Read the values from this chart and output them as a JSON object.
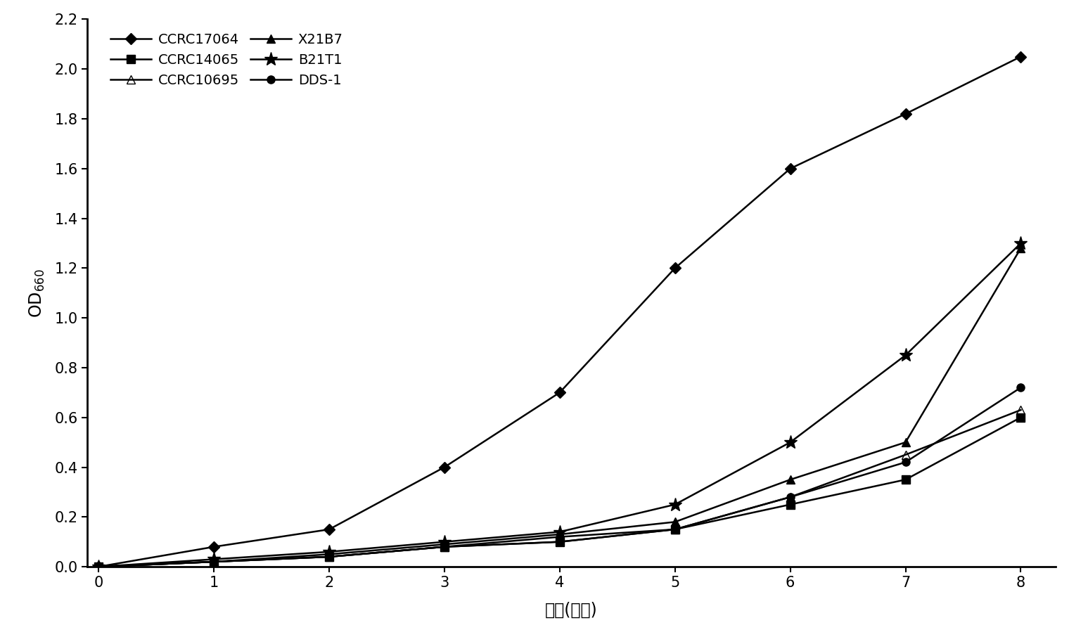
{
  "x": [
    0,
    1,
    2,
    3,
    4,
    5,
    6,
    7,
    8
  ],
  "series": {
    "CCRC17064": [
      0.0,
      0.08,
      0.15,
      0.4,
      0.7,
      1.2,
      1.6,
      1.82,
      2.05
    ],
    "CCRC14065": [
      0.0,
      0.02,
      0.04,
      0.08,
      0.1,
      0.15,
      0.25,
      0.35,
      0.6
    ],
    "CCRC10695": [
      0.0,
      0.02,
      0.04,
      0.08,
      0.12,
      0.15,
      0.28,
      0.45,
      0.63
    ],
    "X21B7": [
      0.0,
      0.02,
      0.05,
      0.09,
      0.13,
      0.18,
      0.35,
      0.5,
      1.28
    ],
    "B21T1": [
      0.0,
      0.03,
      0.06,
      0.1,
      0.14,
      0.25,
      0.5,
      0.85,
      1.3
    ],
    "DDS-1": [
      0.0,
      0.02,
      0.04,
      0.08,
      0.1,
      0.15,
      0.28,
      0.42,
      0.72
    ]
  },
  "series_order": [
    "CCRC17064",
    "CCRC14065",
    "CCRC10695",
    "X21B7",
    "B21T1",
    "DDS-1"
  ],
  "legend_order": [
    "CCRC17064",
    "CCRC14065",
    "CCRC10695",
    "X21B7",
    "B21T1",
    "DDS-1"
  ],
  "marker_styles": {
    "CCRC17064": {
      "marker": "D",
      "mfc": "black",
      "mec": "black",
      "ms": 8
    },
    "CCRC14065": {
      "marker": "s",
      "mfc": "black",
      "mec": "black",
      "ms": 8
    },
    "CCRC10695": {
      "marker": "^",
      "mfc": "none",
      "mec": "black",
      "ms": 9
    },
    "X21B7": {
      "marker": "^",
      "mfc": "black",
      "mec": "black",
      "ms": 9
    },
    "B21T1": {
      "marker": "*",
      "mfc": "black",
      "mec": "black",
      "ms": 14
    },
    "DDS-1": {
      "marker": "o",
      "mfc": "black",
      "mec": "black",
      "ms": 8
    }
  },
  "ylabel": "OD$_{660}$",
  "xlabel": "时间(小时)",
  "ylim": [
    0.0,
    2.2
  ],
  "xlim": [
    -0.1,
    8.3
  ],
  "yticks": [
    0.0,
    0.2,
    0.4,
    0.6,
    0.8,
    1.0,
    1.2,
    1.4,
    1.6,
    1.8,
    2.0,
    2.2
  ],
  "xticks": [
    0,
    1,
    2,
    3,
    4,
    5,
    6,
    7,
    8
  ],
  "linewidth": 1.8,
  "background_color": "#ffffff",
  "font_size_ticks": 15,
  "font_size_label": 17,
  "font_size_legend": 14
}
